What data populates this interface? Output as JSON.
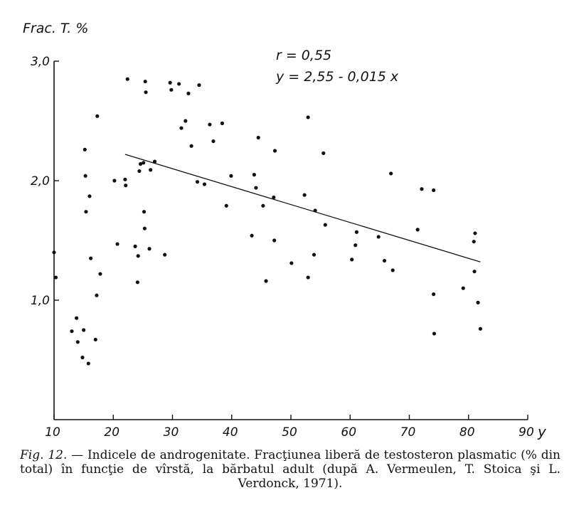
{
  "chart_data": {
    "type": "scatter",
    "ylabel": "Frac. T. %",
    "xlabel": "y",
    "xlim": [
      10,
      90
    ],
    "ylim": [
      0,
      3
    ],
    "x_ticks": [
      10,
      20,
      30,
      40,
      50,
      60,
      70,
      80,
      90
    ],
    "x_tick_labels": [
      "10",
      "20",
      "30",
      "40",
      "50",
      "60",
      "70",
      "80",
      "90"
    ],
    "y_ticks": [
      1,
      2,
      3
    ],
    "y_tick_labels": [
      "1,0",
      "2,0",
      "3,0"
    ],
    "annotations": [
      "r = 0,55",
      "y = 2,55 - 0,015 x"
    ],
    "regression": {
      "intercept": 2.55,
      "slope": -0.015,
      "x_range": [
        22,
        82
      ]
    },
    "grid": false,
    "points": [
      [
        10,
        1.4
      ],
      [
        10.3,
        1.19
      ],
      [
        13,
        0.74
      ],
      [
        13.8,
        0.85
      ],
      [
        14,
        0.65
      ],
      [
        14.8,
        0.52
      ],
      [
        15,
        0.75
      ],
      [
        15.2,
        2.26
      ],
      [
        15.3,
        2.04
      ],
      [
        15.4,
        1.74
      ],
      [
        15.8,
        0.47
      ],
      [
        16,
        1.87
      ],
      [
        16.2,
        1.35
      ],
      [
        17,
        0.67
      ],
      [
        17.2,
        1.04
      ],
      [
        17.3,
        2.54
      ],
      [
        17.8,
        1.22
      ],
      [
        20.2,
        2.0
      ],
      [
        20.7,
        1.47
      ],
      [
        22,
        2.01
      ],
      [
        22.1,
        1.96
      ],
      [
        22.4,
        2.85
      ],
      [
        23.7,
        1.45
      ],
      [
        24.1,
        1.15
      ],
      [
        24.2,
        1.37
      ],
      [
        24.4,
        2.08
      ],
      [
        24.6,
        2.14
      ],
      [
        25.1,
        2.15
      ],
      [
        25.2,
        1.74
      ],
      [
        25.3,
        1.6
      ],
      [
        25.4,
        2.83
      ],
      [
        25.5,
        2.74
      ],
      [
        26.1,
        1.43
      ],
      [
        26.3,
        2.09
      ],
      [
        27,
        2.16
      ],
      [
        28.7,
        1.38
      ],
      [
        29.6,
        2.82
      ],
      [
        29.8,
        2.76
      ],
      [
        31.1,
        2.81
      ],
      [
        31.5,
        2.44
      ],
      [
        32.2,
        2.5
      ],
      [
        32.7,
        2.73
      ],
      [
        33.2,
        2.29
      ],
      [
        34.2,
        1.99
      ],
      [
        34.5,
        2.8
      ],
      [
        35.4,
        1.97
      ],
      [
        36.3,
        2.47
      ],
      [
        36.9,
        2.33
      ],
      [
        38.4,
        2.48
      ],
      [
        39.1,
        1.79
      ],
      [
        39.9,
        2.04
      ],
      [
        43.4,
        1.54
      ],
      [
        43.8,
        2.05
      ],
      [
        44.1,
        1.94
      ],
      [
        44.5,
        2.36
      ],
      [
        45.3,
        1.79
      ],
      [
        45.8,
        1.16
      ],
      [
        47.1,
        1.86
      ],
      [
        47.2,
        1.5
      ],
      [
        47.3,
        2.25
      ],
      [
        50.1,
        1.31
      ],
      [
        52.3,
        1.88
      ],
      [
        52.9,
        1.19
      ],
      [
        52.9,
        2.53
      ],
      [
        53.9,
        1.38
      ],
      [
        54.1,
        1.75
      ],
      [
        55.5,
        2.23
      ],
      [
        55.8,
        1.63
      ],
      [
        60.3,
        1.34
      ],
      [
        60.9,
        1.46
      ],
      [
        61.1,
        1.57
      ],
      [
        64.8,
        1.53
      ],
      [
        65.8,
        1.33
      ],
      [
        66.9,
        2.06
      ],
      [
        67.2,
        1.25
      ],
      [
        71.4,
        1.59
      ],
      [
        72.1,
        1.93
      ],
      [
        74.1,
        1.05
      ],
      [
        74.1,
        1.92
      ],
      [
        74.2,
        0.72
      ],
      [
        79.1,
        1.1
      ],
      [
        80.9,
        1.49
      ],
      [
        81,
        1.24
      ],
      [
        81.1,
        1.56
      ],
      [
        81.6,
        0.98
      ],
      [
        82,
        0.76
      ]
    ]
  },
  "caption": {
    "lead": "Fig. 12.",
    "text": " — Indicele de androgenitate. Fracţiunea liberă de testosteron plasmatic (% din total) în funcţie de vîrstă, la bărbatul adult (după A. Vermeulen, T. Stoica şi L. Verdonck, 1971)."
  }
}
